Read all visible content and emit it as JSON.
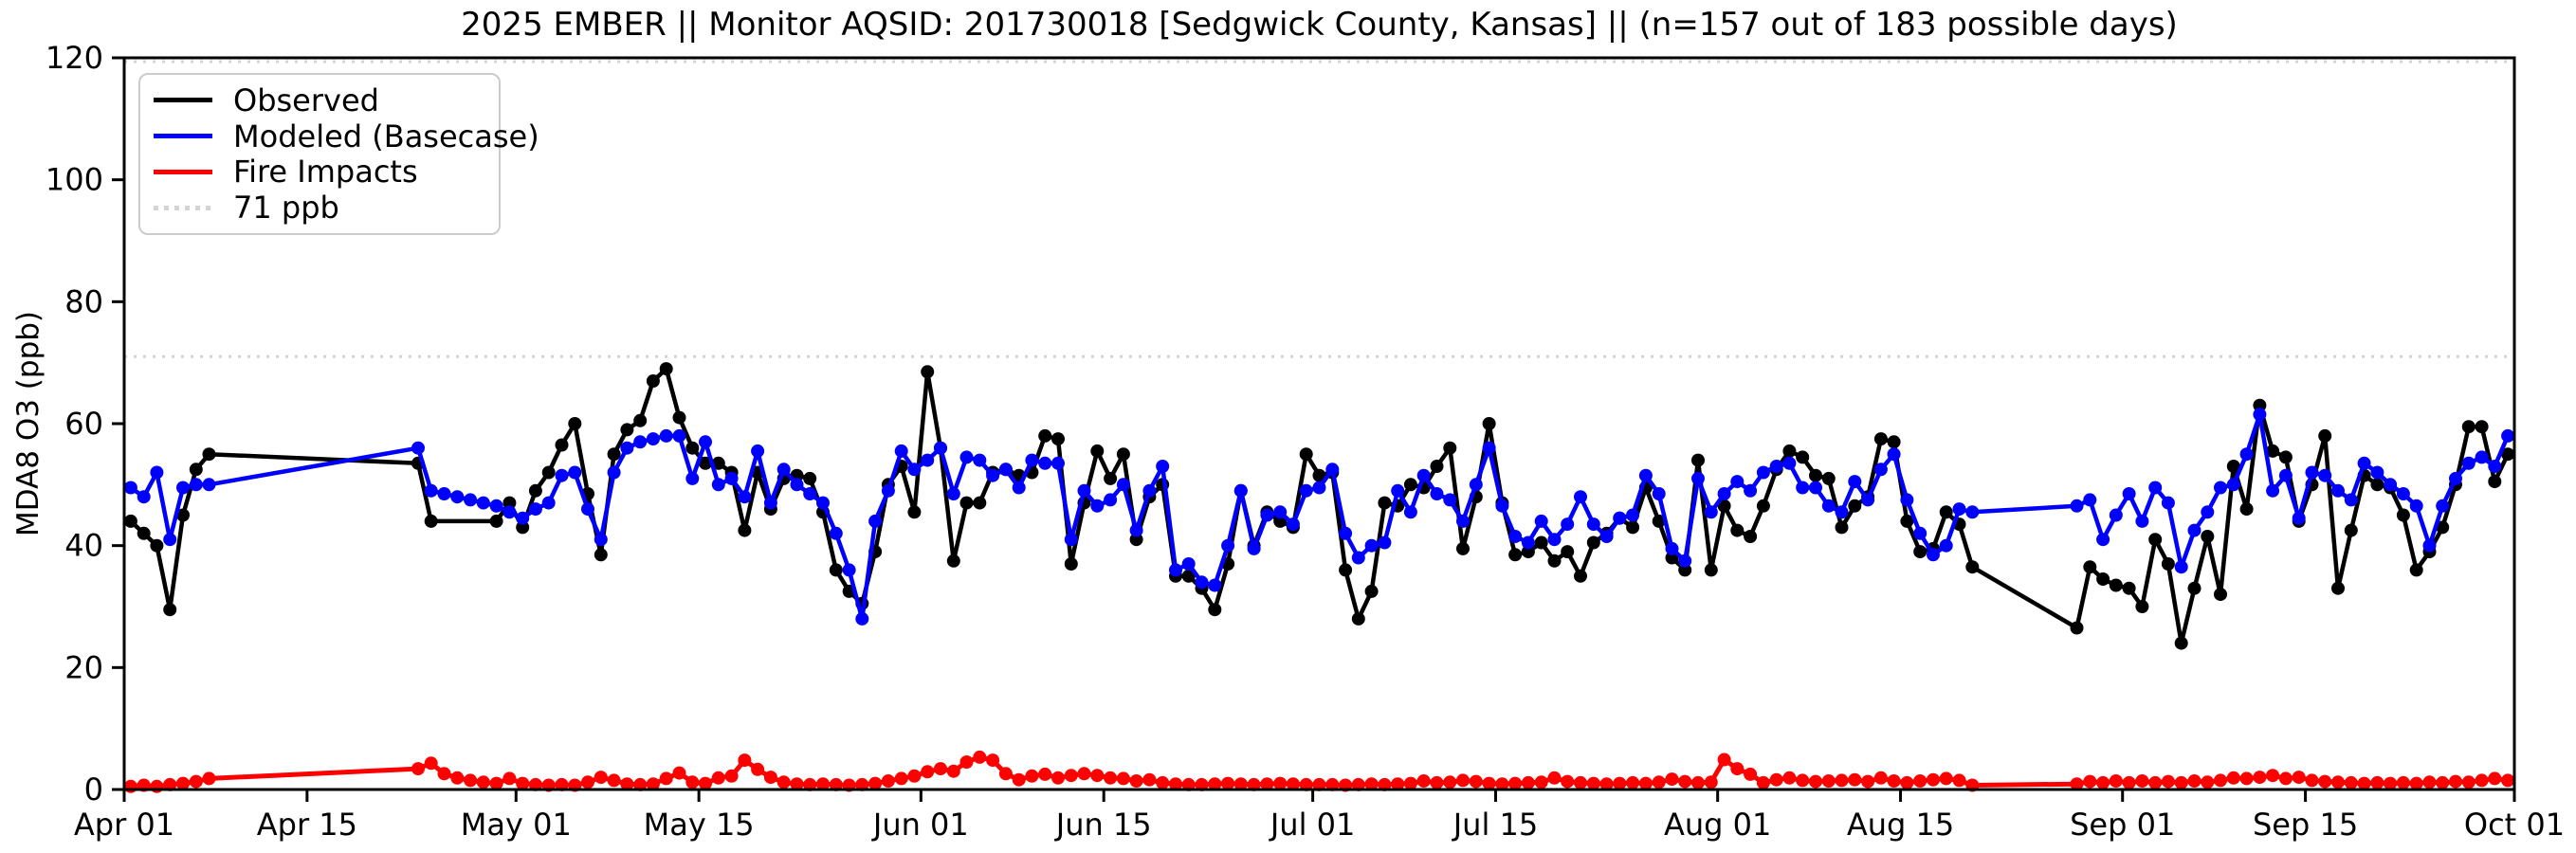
{
  "chart": {
    "title": "2025 EMBER || Monitor AQSID: 201730018 [Sedgwick County, Kansas] || (n=157 out of 183 possible days)",
    "y_axis_label": "MDA8 O3 (ppb)",
    "legend": [
      {
        "label": "Observed",
        "color": "#000000",
        "style": "solid"
      },
      {
        "label": "Modeled (Basecase)",
        "color": "#0000ff",
        "style": "solid"
      },
      {
        "label": "Fire Impacts",
        "color": "#ff0000",
        "style": "solid"
      },
      {
        "label": "71 ppb",
        "color": "#d3d3d3",
        "style": "dotted"
      }
    ]
  },
  "chart_data": {
    "type": "line",
    "title": "2025 EMBER || Monitor AQSID: 201730018 [Sedgwick County, Kansas] || (n=157 out of 183 possible days)",
    "xlabel": "",
    "ylabel": "MDA8 O3 (ppb)",
    "ylim": [
      0,
      120
    ],
    "y_ticks": [
      0,
      20,
      40,
      60,
      80,
      100,
      120
    ],
    "x_range_days": 183,
    "x_ticks": [
      {
        "day": 0,
        "label": "Apr 01"
      },
      {
        "day": 14,
        "label": "Apr 15"
      },
      {
        "day": 30,
        "label": "May 01"
      },
      {
        "day": 44,
        "label": "May 15"
      },
      {
        "day": 61,
        "label": "Jun 01"
      },
      {
        "day": 75,
        "label": "Jun 15"
      },
      {
        "day": 91,
        "label": "Jul 01"
      },
      {
        "day": 105,
        "label": "Jul 15"
      },
      {
        "day": 122,
        "label": "Aug 01"
      },
      {
        "day": 136,
        "label": "Aug 15"
      },
      {
        "day": 153,
        "label": "Sep 01"
      },
      {
        "day": 167,
        "label": "Sep 15"
      },
      {
        "day": 183,
        "label": "Oct 01"
      }
    ],
    "threshold": {
      "value": 71,
      "label": "71 ppb",
      "color": "#d3d3d3"
    },
    "top_reference_value": 120,
    "legend_position": "upper left",
    "grid": false,
    "note_visible_in_title": "n=157 out of 183 possible days",
    "series": [
      {
        "name": "Observed",
        "color": "#000000",
        "marker": "circle",
        "values": [
          44,
          42,
          40,
          29.5,
          45,
          52.5,
          55,
          null,
          null,
          null,
          null,
          null,
          null,
          null,
          null,
          null,
          null,
          null,
          null,
          null,
          null,
          null,
          53.5,
          44,
          null,
          null,
          null,
          null,
          44,
          47,
          43,
          49,
          52,
          56.5,
          60,
          48.5,
          38.5,
          55,
          59,
          60.5,
          67,
          69,
          61,
          56,
          53.5,
          53.5,
          52,
          42.5,
          52,
          46,
          51,
          51.5,
          51,
          45.5,
          36,
          32.5,
          30.5,
          39,
          50,
          53,
          45.5,
          68.5,
          56,
          37.5,
          47,
          47,
          52,
          52.5,
          51.5,
          52,
          58,
          57.5,
          37,
          47,
          55.5,
          51,
          55,
          41,
          48,
          50,
          35,
          35,
          33,
          29.5,
          37,
          49,
          40,
          45.5,
          44,
          43,
          55,
          51.5,
          52,
          36,
          28,
          32.5,
          47,
          46.5,
          50,
          49.5,
          53,
          56,
          39.5,
          48,
          60,
          47,
          38.5,
          39,
          40.5,
          37.5,
          39,
          35,
          40.5,
          42,
          44.5,
          43,
          49.5,
          44,
          38,
          36,
          54,
          36,
          46.5,
          42.5,
          41.5,
          46.5,
          52.5,
          55.5,
          54.5,
          51.5,
          51,
          43,
          46.5,
          48,
          57.5,
          57,
          44,
          39,
          39.5,
          45.5,
          43.5,
          36.5,
          null,
          null,
          null,
          null,
          null,
          null,
          null,
          26.5,
          36.5,
          34.5,
          33.5,
          33,
          30,
          41,
          37,
          24,
          33,
          41.5,
          32,
          53,
          46,
          63,
          55.5,
          54.5,
          44,
          50,
          58,
          33,
          42.5,
          51.5,
          50,
          49.5,
          45,
          36,
          39,
          43,
          50,
          59.5,
          59.5,
          50.5,
          55
        ]
      },
      {
        "name": "Modeled (Basecase)",
        "color": "#0000ff",
        "marker": "circle",
        "values": [
          49.5,
          48,
          52,
          41,
          49.5,
          50,
          50,
          null,
          null,
          null,
          null,
          null,
          null,
          null,
          null,
          null,
          null,
          null,
          null,
          null,
          null,
          null,
          56,
          49,
          48.5,
          48,
          47.5,
          47,
          46.5,
          45.5,
          44.5,
          46,
          47,
          51.5,
          52,
          46,
          41,
          52,
          56,
          57,
          57.5,
          58,
          58,
          51,
          57,
          50,
          51,
          48,
          55.5,
          47,
          52.5,
          50,
          48.5,
          47,
          42,
          36,
          28,
          44,
          49,
          55.5,
          52.5,
          54,
          56,
          48.5,
          54.5,
          54,
          51.5,
          52.5,
          49.5,
          54,
          53.5,
          53.5,
          41,
          49,
          46.5,
          47.5,
          50,
          42.5,
          49,
          53,
          36,
          37,
          34,
          33.5,
          40,
          49,
          39.5,
          45,
          45.5,
          43.5,
          49,
          49.5,
          52.5,
          42,
          38,
          40,
          40.5,
          49,
          45.5,
          51.5,
          48.5,
          47.5,
          44,
          50,
          56,
          46.5,
          41.5,
          40.5,
          44,
          41,
          43.5,
          48,
          43.5,
          41.5,
          44.5,
          45,
          51.5,
          48.5,
          39.5,
          37.5,
          51,
          45.5,
          48.5,
          50.5,
          49,
          52,
          53,
          53.5,
          49.5,
          49.5,
          46.5,
          45.5,
          50.5,
          47.5,
          52.5,
          55,
          47.5,
          42,
          38.5,
          40,
          46,
          45.5,
          null,
          null,
          null,
          null,
          null,
          null,
          null,
          46.5,
          47.5,
          41,
          45,
          48.5,
          44,
          49.5,
          47,
          36.5,
          42.5,
          45.5,
          49.5,
          50,
          55,
          61.5,
          49,
          51.5,
          44.5,
          52,
          51.5,
          49,
          47.5,
          53.5,
          52,
          50,
          48.5,
          46.5,
          40,
          46.5,
          51,
          53.5,
          54.5,
          53,
          58
        ]
      },
      {
        "name": "Fire Impacts",
        "color": "#ff0000",
        "marker": "circle",
        "values": [
          0.5,
          0.7,
          0.5,
          0.8,
          1,
          1.3,
          1.8,
          null,
          null,
          null,
          null,
          null,
          null,
          null,
          null,
          null,
          null,
          null,
          null,
          null,
          null,
          null,
          3.4,
          4.3,
          2.6,
          1.9,
          1.5,
          1.2,
          1,
          1.8,
          1,
          0.8,
          0.7,
          0.8,
          0.7,
          1.2,
          2,
          1.5,
          0.9,
          0.8,
          0.9,
          1.8,
          2.7,
          1.2,
          1,
          1.9,
          2.2,
          4.8,
          3.3,
          2,
          1.2,
          0.9,
          0.8,
          0.9,
          0.8,
          0.7,
          0.8,
          1,
          1.4,
          1.8,
          2.2,
          2.9,
          3.4,
          3,
          4.5,
          5.3,
          4.8,
          2.6,
          1.6,
          2.2,
          2.5,
          1.9,
          2.3,
          2.6,
          2.3,
          1.9,
          1.8,
          1.4,
          1.6,
          1.1,
          0.9,
          0.8,
          0.8,
          0.9,
          1,
          0.9,
          0.8,
          0.9,
          1,
          0.9,
          0.8,
          0.8,
          0.8,
          0.7,
          0.8,
          0.9,
          0.8,
          0.9,
          1,
          1.4,
          1.1,
          1.2,
          1.5,
          1.3,
          1,
          0.9,
          1,
          1.1,
          1.2,
          1.9,
          1.3,
          1.1,
          1,
          0.9,
          1,
          1.1,
          1,
          1.2,
          1.7,
          1.3,
          1.1,
          1.2,
          4.9,
          3.4,
          2.5,
          1.1,
          1.6,
          1.9,
          1.5,
          1.3,
          1.4,
          1.5,
          1.6,
          1.3,
          1.9,
          1.4,
          1.1,
          1.4,
          1.6,
          1.8,
          1.5,
          0.7,
          null,
          null,
          null,
          null,
          null,
          null,
          null,
          0.9,
          1.3,
          1.1,
          1.4,
          1.1,
          1.4,
          1.1,
          1.3,
          1.1,
          1.4,
          1.2,
          1.5,
          1.9,
          1.8,
          2,
          2.3,
          1.8,
          2,
          1.5,
          1.3,
          1.2,
          1.1,
          1,
          1.1,
          1,
          1.1,
          1,
          1.2,
          1.1,
          1.3,
          1.2,
          1.5,
          1.8,
          1.5
        ]
      }
    ]
  }
}
